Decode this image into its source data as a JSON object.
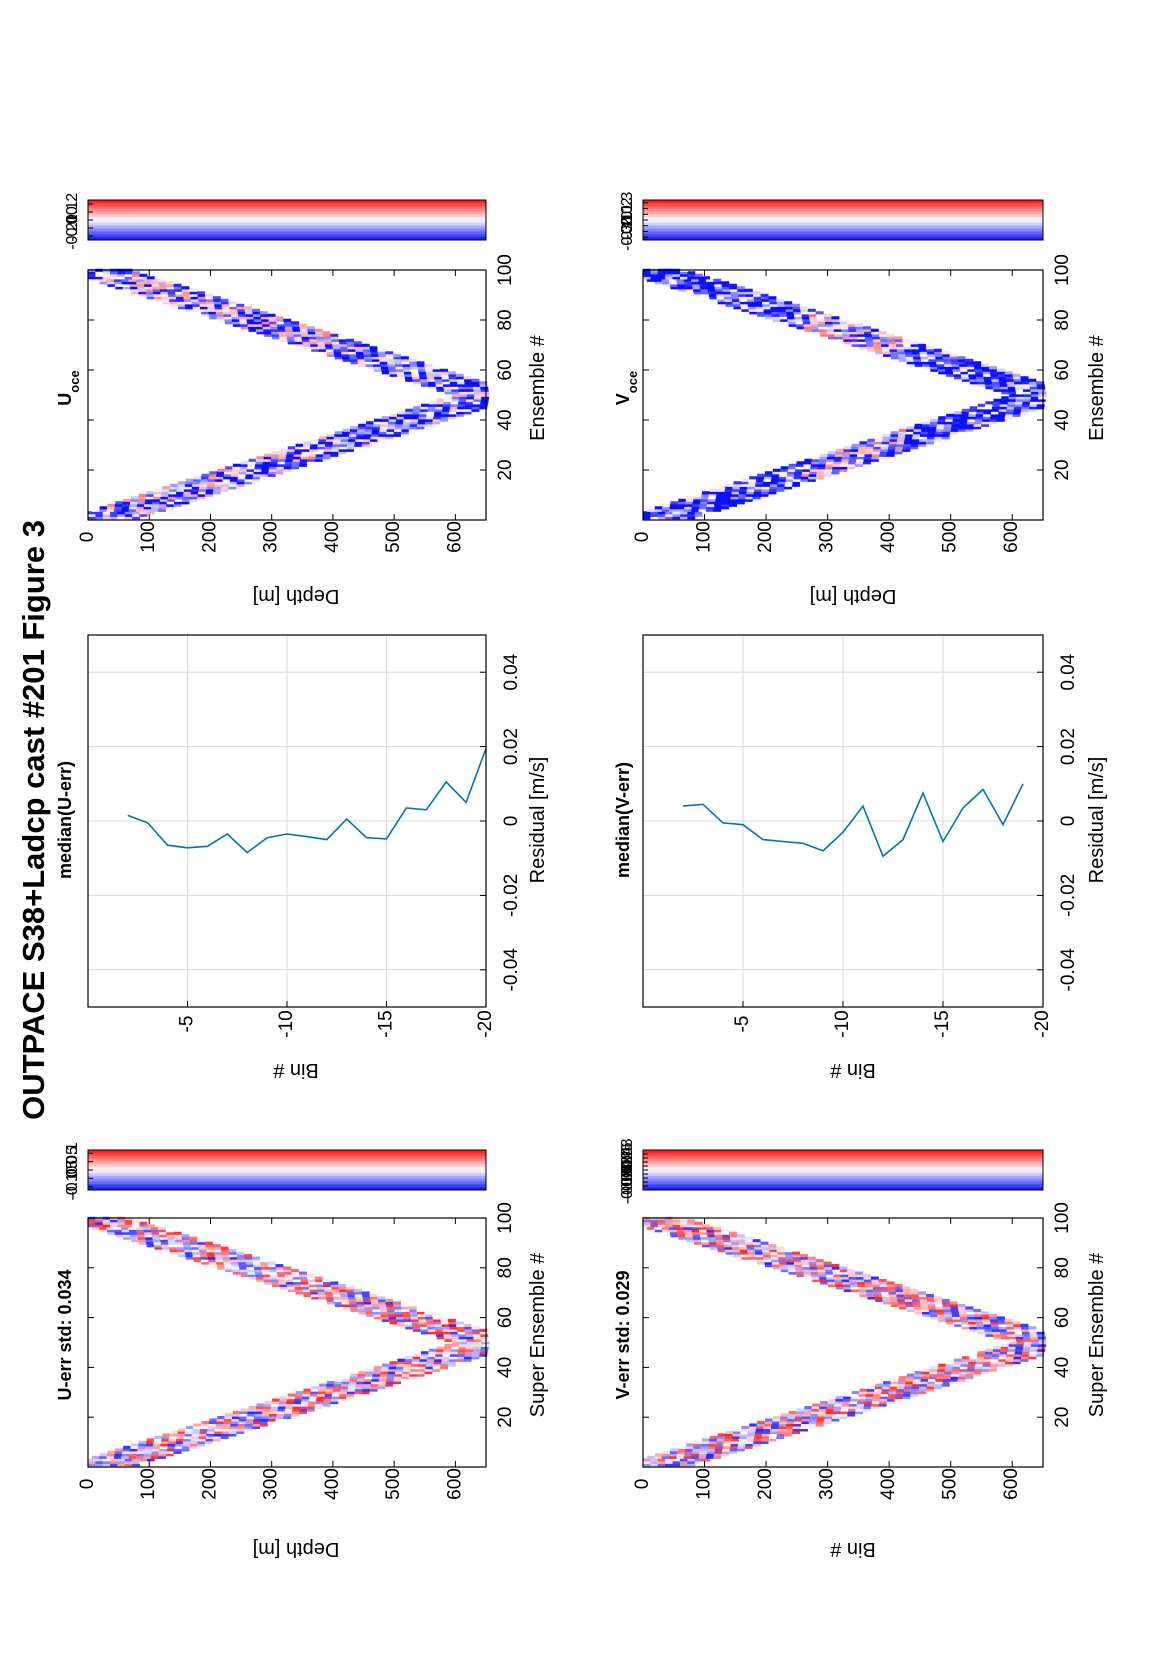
{
  "figure_title": "OUTPACE S38+Ladcp cast #201  Figure 3",
  "panels": {
    "uerr_map": {
      "title": "U-err std: 0.034",
      "xlabel": "Super Ensemble #",
      "ylabel": "Depth [m]",
      "xticks": [
        "20",
        "40",
        "60",
        "80",
        "100"
      ],
      "yticks": [
        "0",
        "100",
        "200",
        "300",
        "400",
        "500",
        "600"
      ]
    },
    "uerr_cbar": {
      "ticks": [
        "0.1",
        "0.05",
        "0",
        "-0.05",
        "-0.1"
      ]
    },
    "uerr_median": {
      "title": "median(U-err)",
      "xlabel": "Residual [m/s]",
      "ylabel": "Bin #",
      "xticks": [
        "-0.04",
        "-0.02",
        "0",
        "0.02",
        "0.04"
      ],
      "yticks": [
        "-5",
        "-10",
        "-15",
        "-20"
      ]
    },
    "uoce_map": {
      "title_main": "U",
      "title_sub": "oce",
      "xlabel": "Ensemble #",
      "ylabel": "Depth [m]",
      "xticks": [
        "20",
        "40",
        "60",
        "80",
        "100"
      ],
      "yticks": [
        "0",
        "100",
        "200",
        "300",
        "400",
        "500",
        "600"
      ]
    },
    "uoce_cbar": {
      "ticks": [
        "0.2",
        "0.1",
        "0",
        "-0.1",
        "-0.2"
      ]
    },
    "verr_map": {
      "title": "V-err std: 0.029",
      "xlabel": "Super Ensemble #",
      "ylabel": "Bin #",
      "xticks": [
        "20",
        "40",
        "60",
        "80",
        "100"
      ],
      "yticks": [
        "0",
        "100",
        "200",
        "300",
        "400",
        "500",
        "600"
      ]
    },
    "verr_cbar": {
      "ticks": [
        "0.08",
        "0.06",
        "0.04",
        "0.02",
        "0",
        "-0.02",
        "-0.04",
        "-0.06",
        "-0.08"
      ]
    },
    "verr_median": {
      "title": "median(V-err)",
      "xlabel": "Residual [m/s]",
      "ylabel": "Bin #",
      "xticks": [
        "-0.04",
        "-0.02",
        "0",
        "0.02",
        "0.04"
      ],
      "yticks": [
        "-5",
        "-10",
        "-15",
        "-20"
      ]
    },
    "voce_map": {
      "title_main": "V",
      "title_sub": "oce",
      "xlabel": "Ensemble #",
      "ylabel": "Depth [m]",
      "xticks": [
        "20",
        "40",
        "60",
        "80",
        "100"
      ],
      "yticks": [
        "0",
        "100",
        "200",
        "300",
        "400",
        "500",
        "600"
      ]
    },
    "voce_cbar": {
      "ticks": [
        "0.3",
        "0.2",
        "0.1",
        "0",
        "-0.1",
        "-0.2",
        "-0.3"
      ]
    }
  },
  "colors": {
    "line": "#0072bd",
    "negative": "#1010ff",
    "positive": "#ff1010",
    "grid": "#d9d9d9",
    "axis": "#000000"
  },
  "chart_data": [
    {
      "type": "line",
      "name": "median(U-err)",
      "xlabel": "Residual [m/s]",
      "ylabel": "Bin #",
      "xlim": [
        -0.05,
        0.05
      ],
      "ylim": [
        -20,
        0
      ],
      "grid": true,
      "x": [
        0.0015,
        -0.0005,
        -0.0065,
        -0.0072,
        -0.0068,
        -0.0035,
        -0.0085,
        -0.0045,
        -0.0035,
        -0.0042,
        -0.005,
        0.0005,
        -0.0045,
        -0.0048,
        0.0035,
        0.003,
        0.0105,
        0.005,
        0.0195
      ],
      "y": [
        -2,
        -3,
        -4,
        -5,
        -6,
        -7,
        -8,
        -9,
        -10,
        -11,
        -12,
        -13,
        -14,
        -15,
        -16,
        -17,
        -18,
        -19,
        -20
      ]
    },
    {
      "type": "line",
      "name": "median(V-err)",
      "xlabel": "Residual [m/s]",
      "ylabel": "Bin #",
      "xlim": [
        -0.05,
        0.05
      ],
      "ylim": [
        -20,
        0
      ],
      "grid": true,
      "x": [
        0.004,
        0.0045,
        -0.0005,
        -0.001,
        -0.005,
        -0.0055,
        -0.006,
        -0.008,
        -0.003,
        0.004,
        -0.0095,
        -0.005,
        0.0075,
        -0.0055,
        0.0035,
        0.0085,
        -0.001,
        0.01
      ],
      "y": [
        -2,
        -3,
        -4,
        -5,
        -6,
        -7,
        -8,
        -9,
        -10,
        -11,
        -12,
        -13,
        -14,
        -15,
        -16,
        -17,
        -18,
        -19
      ]
    },
    {
      "type": "heatmap",
      "name": "U-err map",
      "xlabel": "Super Ensemble #",
      "ylabel": "Depth [m]",
      "xlim": [
        0,
        100
      ],
      "ylim": [
        0,
        650
      ],
      "clim": [
        -0.12,
        0.12
      ],
      "band": {
        "turn_x": 50,
        "max_depth": 640,
        "thickness": 110
      }
    },
    {
      "type": "heatmap",
      "name": "U_oce map",
      "xlabel": "Ensemble #",
      "ylabel": "Depth [m]",
      "xlim": [
        0,
        100
      ],
      "ylim": [
        0,
        650
      ],
      "clim": [
        -0.25,
        0.25
      ],
      "band": {
        "turn_x": 50,
        "max_depth": 640,
        "thickness": 110
      }
    },
    {
      "type": "heatmap",
      "name": "V-err map",
      "xlabel": "Super Ensemble #",
      "ylabel": "Bin #",
      "xlim": [
        0,
        100
      ],
      "ylim": [
        0,
        650
      ],
      "clim": [
        -0.1,
        0.1
      ],
      "band": {
        "turn_x": 50,
        "max_depth": 640,
        "thickness": 110
      }
    },
    {
      "type": "heatmap",
      "name": "V_oce map",
      "xlabel": "Ensemble #",
      "ylabel": "Depth [m]",
      "xlim": [
        0,
        100
      ],
      "ylim": [
        0,
        650
      ],
      "clim": [
        -0.35,
        0.35
      ],
      "band": {
        "turn_x": 50,
        "max_depth": 640,
        "thickness": 110
      }
    }
  ]
}
